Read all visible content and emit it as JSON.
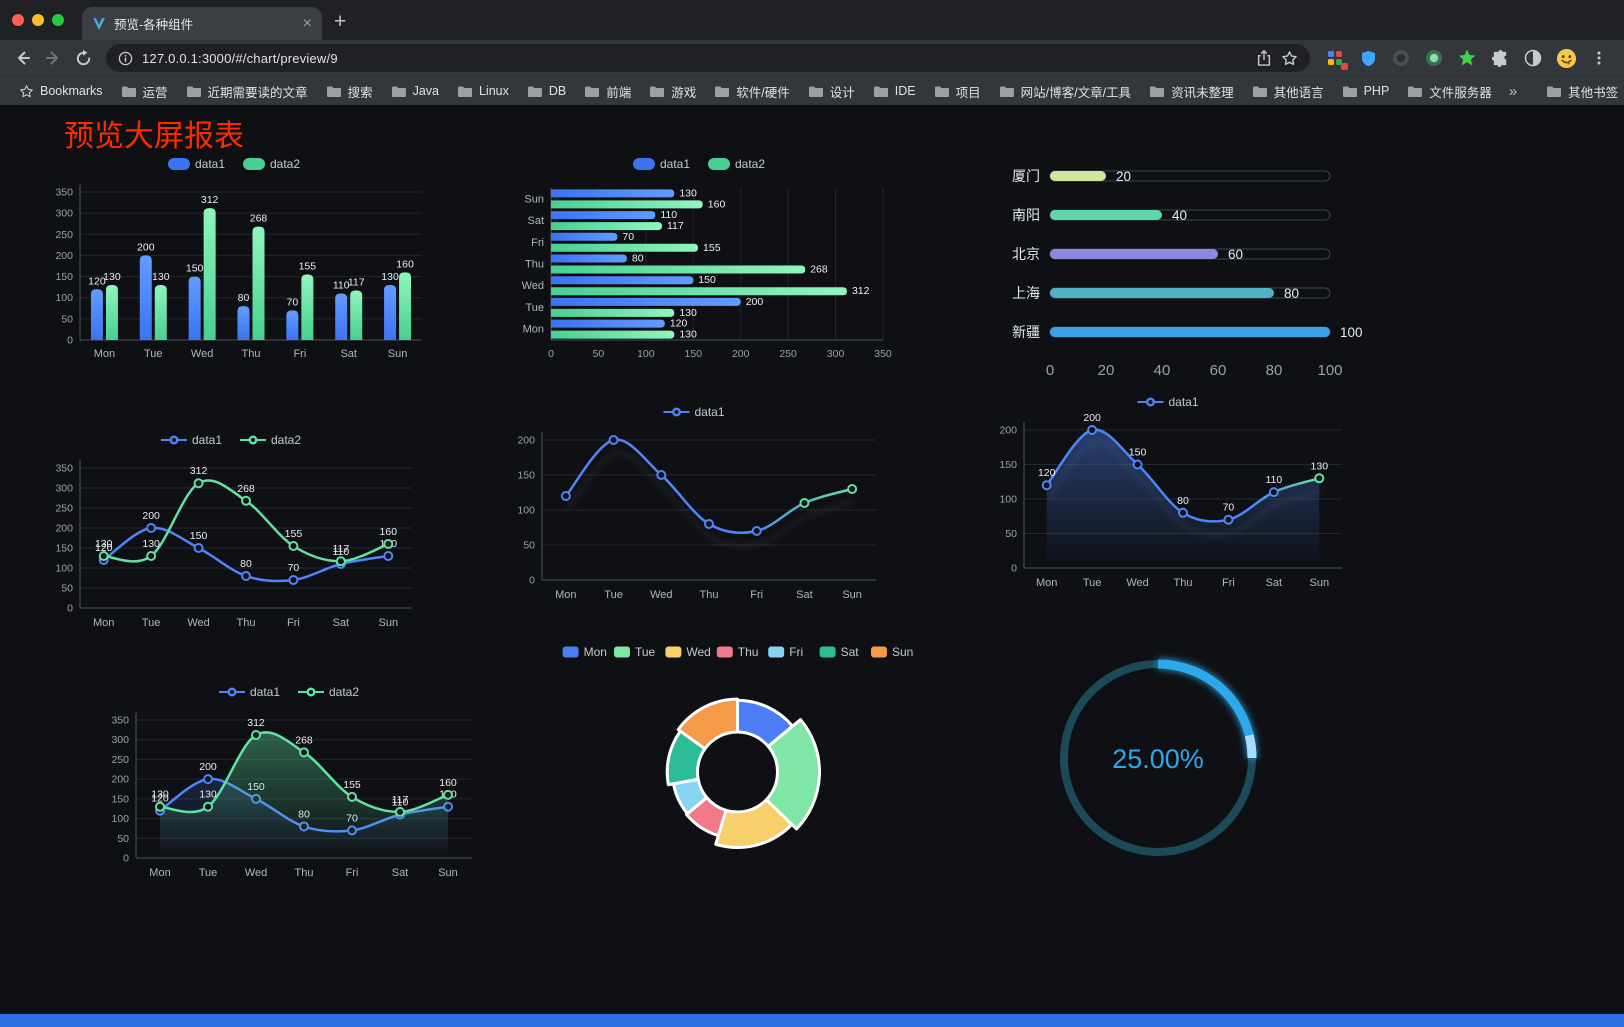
{
  "browser": {
    "tab_title": "预览-各种组件",
    "url": "127.0.0.1:3000/#/chart/preview/9",
    "icons": {
      "close": "×",
      "new_tab": "+",
      "overflow": "»"
    },
    "bookmarks_label": "Bookmarks",
    "bookmarks": [
      "运营",
      "近期需要读的文章",
      "搜索",
      "Java",
      "Linux",
      "DB",
      "前端",
      "游戏",
      "软件/硬件",
      "设计",
      "IDE",
      "项目",
      "网站/博客/文章/工具",
      "资讯未整理",
      "其他语言",
      "PHP",
      "文件服务器"
    ],
    "other_bookmarks": "其他书签"
  },
  "page": {
    "title": "预览大屏报表",
    "title_color": "#ff2b00"
  },
  "chart_data": [
    {
      "id": "grouped-bar",
      "type": "bar",
      "legend": [
        "data1",
        "data2"
      ],
      "categories": [
        "Mon",
        "Tue",
        "Wed",
        "Thu",
        "Fri",
        "Sat",
        "Sun"
      ],
      "series": [
        {
          "name": "data1",
          "color": "#3b73f2",
          "color2": "#639cff",
          "values": [
            120,
            200,
            150,
            80,
            70,
            110,
            130
          ]
        },
        {
          "name": "data2",
          "color": "#49cf92",
          "color2": "#90f6bd",
          "values": [
            130,
            130,
            312,
            268,
            155,
            117,
            160
          ]
        }
      ],
      "ylim": [
        0,
        350
      ],
      "yticks": [
        0,
        50,
        100,
        150,
        200,
        250,
        300,
        350
      ]
    },
    {
      "id": "horizontal-bar",
      "type": "hbar",
      "legend": [
        "data1",
        "data2"
      ],
      "categories": [
        "Mon",
        "Tue",
        "Wed",
        "Thu",
        "Fri",
        "Sat",
        "Sun"
      ],
      "series": [
        {
          "name": "data1",
          "color": "#3b73f2",
          "color2": "#639cff",
          "values": [
            120,
            200,
            150,
            80,
            70,
            110,
            130
          ]
        },
        {
          "name": "data2",
          "color": "#49cf92",
          "color2": "#90f6bd",
          "values": [
            130,
            130,
            312,
            268,
            155,
            117,
            160
          ]
        }
      ],
      "xlim": [
        0,
        350
      ],
      "xticks": [
        0,
        50,
        100,
        150,
        200,
        250,
        300,
        350
      ]
    },
    {
      "id": "capsule-bars",
      "type": "capsule",
      "max": 100,
      "xticks": [
        0,
        20,
        40,
        60,
        80,
        100
      ],
      "rows": [
        {
          "label": "厦门",
          "value": 20,
          "color": "#d0e79e"
        },
        {
          "label": "南阳",
          "value": 40,
          "color": "#5fd6a9"
        },
        {
          "label": "北京",
          "value": 60,
          "color": "#8a88e0"
        },
        {
          "label": "上海",
          "value": 80,
          "color": "#4eb3c4"
        },
        {
          "label": "新疆",
          "value": 100,
          "color": "#3aa2e6"
        }
      ]
    },
    {
      "id": "line-two-series",
      "type": "line",
      "legend": [
        "data1",
        "data2"
      ],
      "categories": [
        "Mon",
        "Tue",
        "Wed",
        "Thu",
        "Fri",
        "Sat",
        "Sun"
      ],
      "series": [
        {
          "name": "data1",
          "color": "#4c86f9",
          "values": [
            120,
            200,
            150,
            80,
            70,
            110,
            130
          ]
        },
        {
          "name": "data2",
          "color": "#5fe3a2",
          "values": [
            130,
            130,
            312,
            268,
            155,
            117,
            160
          ]
        }
      ],
      "ylim": [
        0,
        350
      ],
      "yticks": [
        0,
        50,
        100,
        150,
        200,
        250,
        300,
        350
      ]
    },
    {
      "id": "line-gradient",
      "type": "line",
      "shadow": true,
      "legend": [
        "data1"
      ],
      "categories": [
        "Mon",
        "Tue",
        "Wed",
        "Thu",
        "Fri",
        "Sat",
        "Sun"
      ],
      "series": [
        {
          "name": "data1",
          "color": "#4c86f9",
          "color2": "#5fe3a2",
          "gradient": true,
          "gsplit": 0.78,
          "labels": false,
          "values": [
            120,
            200,
            150,
            80,
            70,
            110,
            130
          ]
        }
      ],
      "ylim": [
        0,
        200
      ],
      "yticks": [
        0,
        50,
        100,
        150,
        200
      ]
    },
    {
      "id": "line-area",
      "type": "line",
      "shadow": true,
      "legend": [
        "data1"
      ],
      "categories": [
        "Mon",
        "Tue",
        "Wed",
        "Thu",
        "Fri",
        "Sat",
        "Sun"
      ],
      "series": [
        {
          "name": "data1",
          "color": "#4c86f9",
          "color2": "#5fe3a2",
          "gradient": true,
          "gsplit": 0.9,
          "area": true,
          "areaOpacity": 0.4,
          "values": [
            120,
            200,
            150,
            80,
            70,
            110,
            130
          ]
        }
      ],
      "ylim": [
        0,
        200
      ],
      "yticks": [
        0,
        50,
        100,
        150,
        200
      ]
    },
    {
      "id": "line-two-series-area",
      "type": "line",
      "legend": [
        "data1",
        "data2"
      ],
      "categories": [
        "Mon",
        "Tue",
        "Wed",
        "Thu",
        "Fri",
        "Sat",
        "Sun"
      ],
      "series": [
        {
          "name": "data1",
          "color": "#4c86f9",
          "area": true,
          "areaOpacity": 0.18,
          "values": [
            120,
            200,
            150,
            80,
            70,
            110,
            130
          ]
        },
        {
          "name": "data2",
          "color": "#5fe3a2",
          "area": true,
          "areaOpacity": 0.38,
          "values": [
            130,
            130,
            312,
            268,
            155,
            117,
            160
          ]
        }
      ],
      "ylim": [
        0,
        350
      ],
      "yticks": [
        0,
        50,
        100,
        150,
        200,
        250,
        300,
        350
      ]
    },
    {
      "id": "rose-pie",
      "type": "rose",
      "legend": [
        "Mon",
        "Tue",
        "Wed",
        "Thu",
        "Fri",
        "Sat",
        "Sun"
      ],
      "values": [
        120,
        200,
        150,
        80,
        70,
        110,
        130
      ],
      "colors": [
        "#4b7ef5",
        "#7fe6a5",
        "#f8d06b",
        "#f2798a",
        "#86d3f2",
        "#2dbd96",
        "#f59a49"
      ]
    },
    {
      "id": "progress-ring",
      "type": "ring",
      "percent": 25,
      "label": "25.00%",
      "color": "#2fa8ec",
      "track": "#1c4a58"
    }
  ]
}
